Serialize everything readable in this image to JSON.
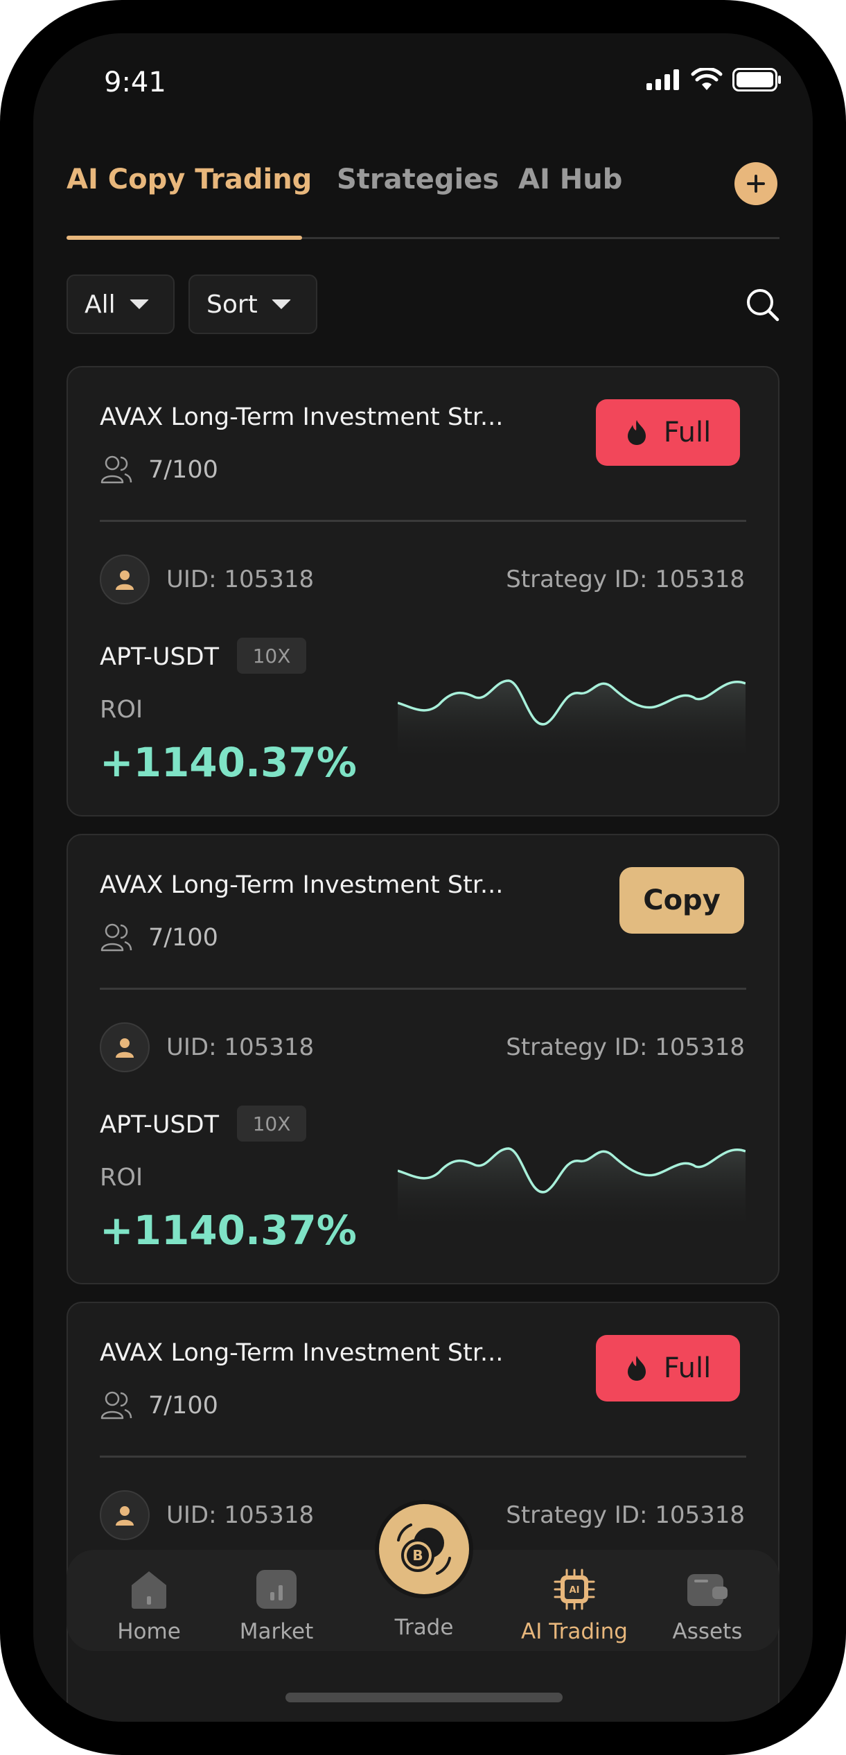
{
  "status_bar": {
    "time": "9:41"
  },
  "tabs": [
    {
      "label": "AI Copy Trading",
      "active": true
    },
    {
      "label": "Strategies",
      "active": false
    },
    {
      "label": "AI Hub",
      "active": false
    }
  ],
  "filters": {
    "all_label": "All",
    "sort_label": "Sort"
  },
  "cards": [
    {
      "title": "AVAX Long-Term Investment Str...",
      "members": "7/100",
      "action": "Full",
      "uid": "UID: 105318",
      "strategy_id": "Strategy ID: 105318",
      "pair": "APT-USDT",
      "leverage": "10X",
      "roi_label": "ROI",
      "roi_value": "+1140.37%"
    },
    {
      "title": "AVAX Long-Term Investment Str...",
      "members": "7/100",
      "action": "Copy",
      "uid": "UID: 105318",
      "strategy_id": "Strategy ID: 105318",
      "pair": "APT-USDT",
      "leverage": "10X",
      "roi_label": "ROI",
      "roi_value": "+1140.37%"
    },
    {
      "title": "AVAX Long-Term Investment Str...",
      "members": "7/100",
      "action": "Full",
      "uid": "UID: 105318",
      "strategy_id": "Strategy ID: 105318"
    }
  ],
  "nav": [
    {
      "label": "Home",
      "icon": "home-icon",
      "active": false
    },
    {
      "label": "Market",
      "icon": "market-icon",
      "active": false
    },
    {
      "label": "Trade",
      "icon": "trade-icon",
      "active": false
    },
    {
      "label": "AI Trading",
      "icon": "ai-chip-icon",
      "active": true
    },
    {
      "label": "Assets",
      "icon": "wallet-icon",
      "active": false
    }
  ],
  "colors": {
    "accent": "#E8B77C",
    "full_badge": "#F2475A",
    "copy_button": "#E2BB80",
    "roi_positive": "#7FE3C6",
    "background": "#121212",
    "card": "#1C1C1C"
  }
}
